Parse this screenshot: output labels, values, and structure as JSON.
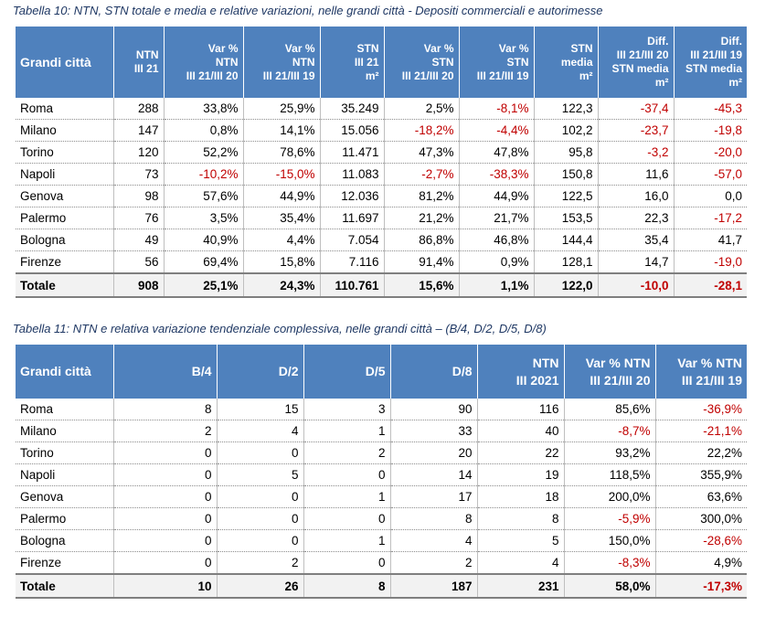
{
  "table10": {
    "caption": "Tabella 10: NTN, STN totale e media e relative variazioni, nelle grandi città - Depositi commerciali e autorimesse",
    "headers": [
      [
        "Grandi città"
      ],
      [
        "NTN",
        "III 21"
      ],
      [
        "Var %",
        "NTN",
        "III 21/III 20"
      ],
      [
        "Var %",
        "NTN",
        "III 21/III 19"
      ],
      [
        "STN",
        "III 21",
        "m²"
      ],
      [
        "Var %",
        "STN",
        "III 21/III 20"
      ],
      [
        "Var %",
        "STN",
        "III 21/III 19"
      ],
      [
        "STN",
        "media",
        "m²"
      ],
      [
        "Diff.",
        "III 21/III 20",
        "STN media",
        "m²"
      ],
      [
        "Diff.",
        "III 21/III 19",
        "STN media",
        "m²"
      ]
    ],
    "rows": [
      [
        "Roma",
        "288",
        "33,8%",
        "25,9%",
        "35.249",
        "2,5%",
        "-8,1%",
        "122,3",
        "-37,4",
        "-45,3"
      ],
      [
        "Milano",
        "147",
        "0,8%",
        "14,1%",
        "15.056",
        "-18,2%",
        "-4,4%",
        "102,2",
        "-23,7",
        "-19,8"
      ],
      [
        "Torino",
        "120",
        "52,2%",
        "78,6%",
        "11.471",
        "47,3%",
        "47,8%",
        "95,8",
        "-3,2",
        "-20,0"
      ],
      [
        "Napoli",
        "73",
        "-10,2%",
        "-15,0%",
        "11.083",
        "-2,7%",
        "-38,3%",
        "150,8",
        "11,6",
        "-57,0"
      ],
      [
        "Genova",
        "98",
        "57,6%",
        "44,9%",
        "12.036",
        "81,2%",
        "44,9%",
        "122,5",
        "16,0",
        "0,0"
      ],
      [
        "Palermo",
        "76",
        "3,5%",
        "35,4%",
        "11.697",
        "21,2%",
        "21,7%",
        "153,5",
        "22,3",
        "-17,2"
      ],
      [
        "Bologna",
        "49",
        "40,9%",
        "4,4%",
        "7.054",
        "86,8%",
        "46,8%",
        "144,4",
        "35,4",
        "41,7"
      ],
      [
        "Firenze",
        "56",
        "69,4%",
        "15,8%",
        "7.116",
        "91,4%",
        "0,9%",
        "128,1",
        "14,7",
        "-19,0"
      ]
    ],
    "total": [
      "Totale",
      "908",
      "25,1%",
      "24,3%",
      "110.761",
      "15,6%",
      "1,1%",
      "122,0",
      "-10,0",
      "-28,1"
    ]
  },
  "table11": {
    "caption": "Tabella 11: NTN e relativa variazione tendenziale complessiva, nelle grandi città – (B/4, D/2, D/5, D/8)",
    "headers": [
      [
        "Grandi città"
      ],
      [
        "B/4"
      ],
      [
        "D/2"
      ],
      [
        "D/5"
      ],
      [
        "D/8"
      ],
      [
        "NTN",
        "III 2021"
      ],
      [
        "Var % NTN",
        "III 21/III 20"
      ],
      [
        "Var % NTN",
        "III 21/III 19"
      ]
    ],
    "rows": [
      [
        "Roma",
        "8",
        "15",
        "3",
        "90",
        "116",
        "85,6%",
        "-36,9%"
      ],
      [
        "Milano",
        "2",
        "4",
        "1",
        "33",
        "40",
        "-8,7%",
        "-21,1%"
      ],
      [
        "Torino",
        "0",
        "0",
        "2",
        "20",
        "22",
        "93,2%",
        "22,2%"
      ],
      [
        "Napoli",
        "0",
        "5",
        "0",
        "14",
        "19",
        "118,5%",
        "355,9%"
      ],
      [
        "Genova",
        "0",
        "0",
        "1",
        "17",
        "18",
        "200,0%",
        "63,6%"
      ],
      [
        "Palermo",
        "0",
        "0",
        "0",
        "8",
        "8",
        "-5,9%",
        "300,0%"
      ],
      [
        "Bologna",
        "0",
        "0",
        "1",
        "4",
        "5",
        "150,0%",
        "-28,6%"
      ],
      [
        "Firenze",
        "0",
        "2",
        "0",
        "2",
        "4",
        "-8,3%",
        "4,9%"
      ]
    ],
    "total": [
      "Totale",
      "10",
      "26",
      "8",
      "187",
      "231",
      "58,0%",
      "-17,3%"
    ]
  },
  "colors": {
    "header_bg": "#4f81bd",
    "negative": "#c00000",
    "caption": "#1f3864"
  }
}
